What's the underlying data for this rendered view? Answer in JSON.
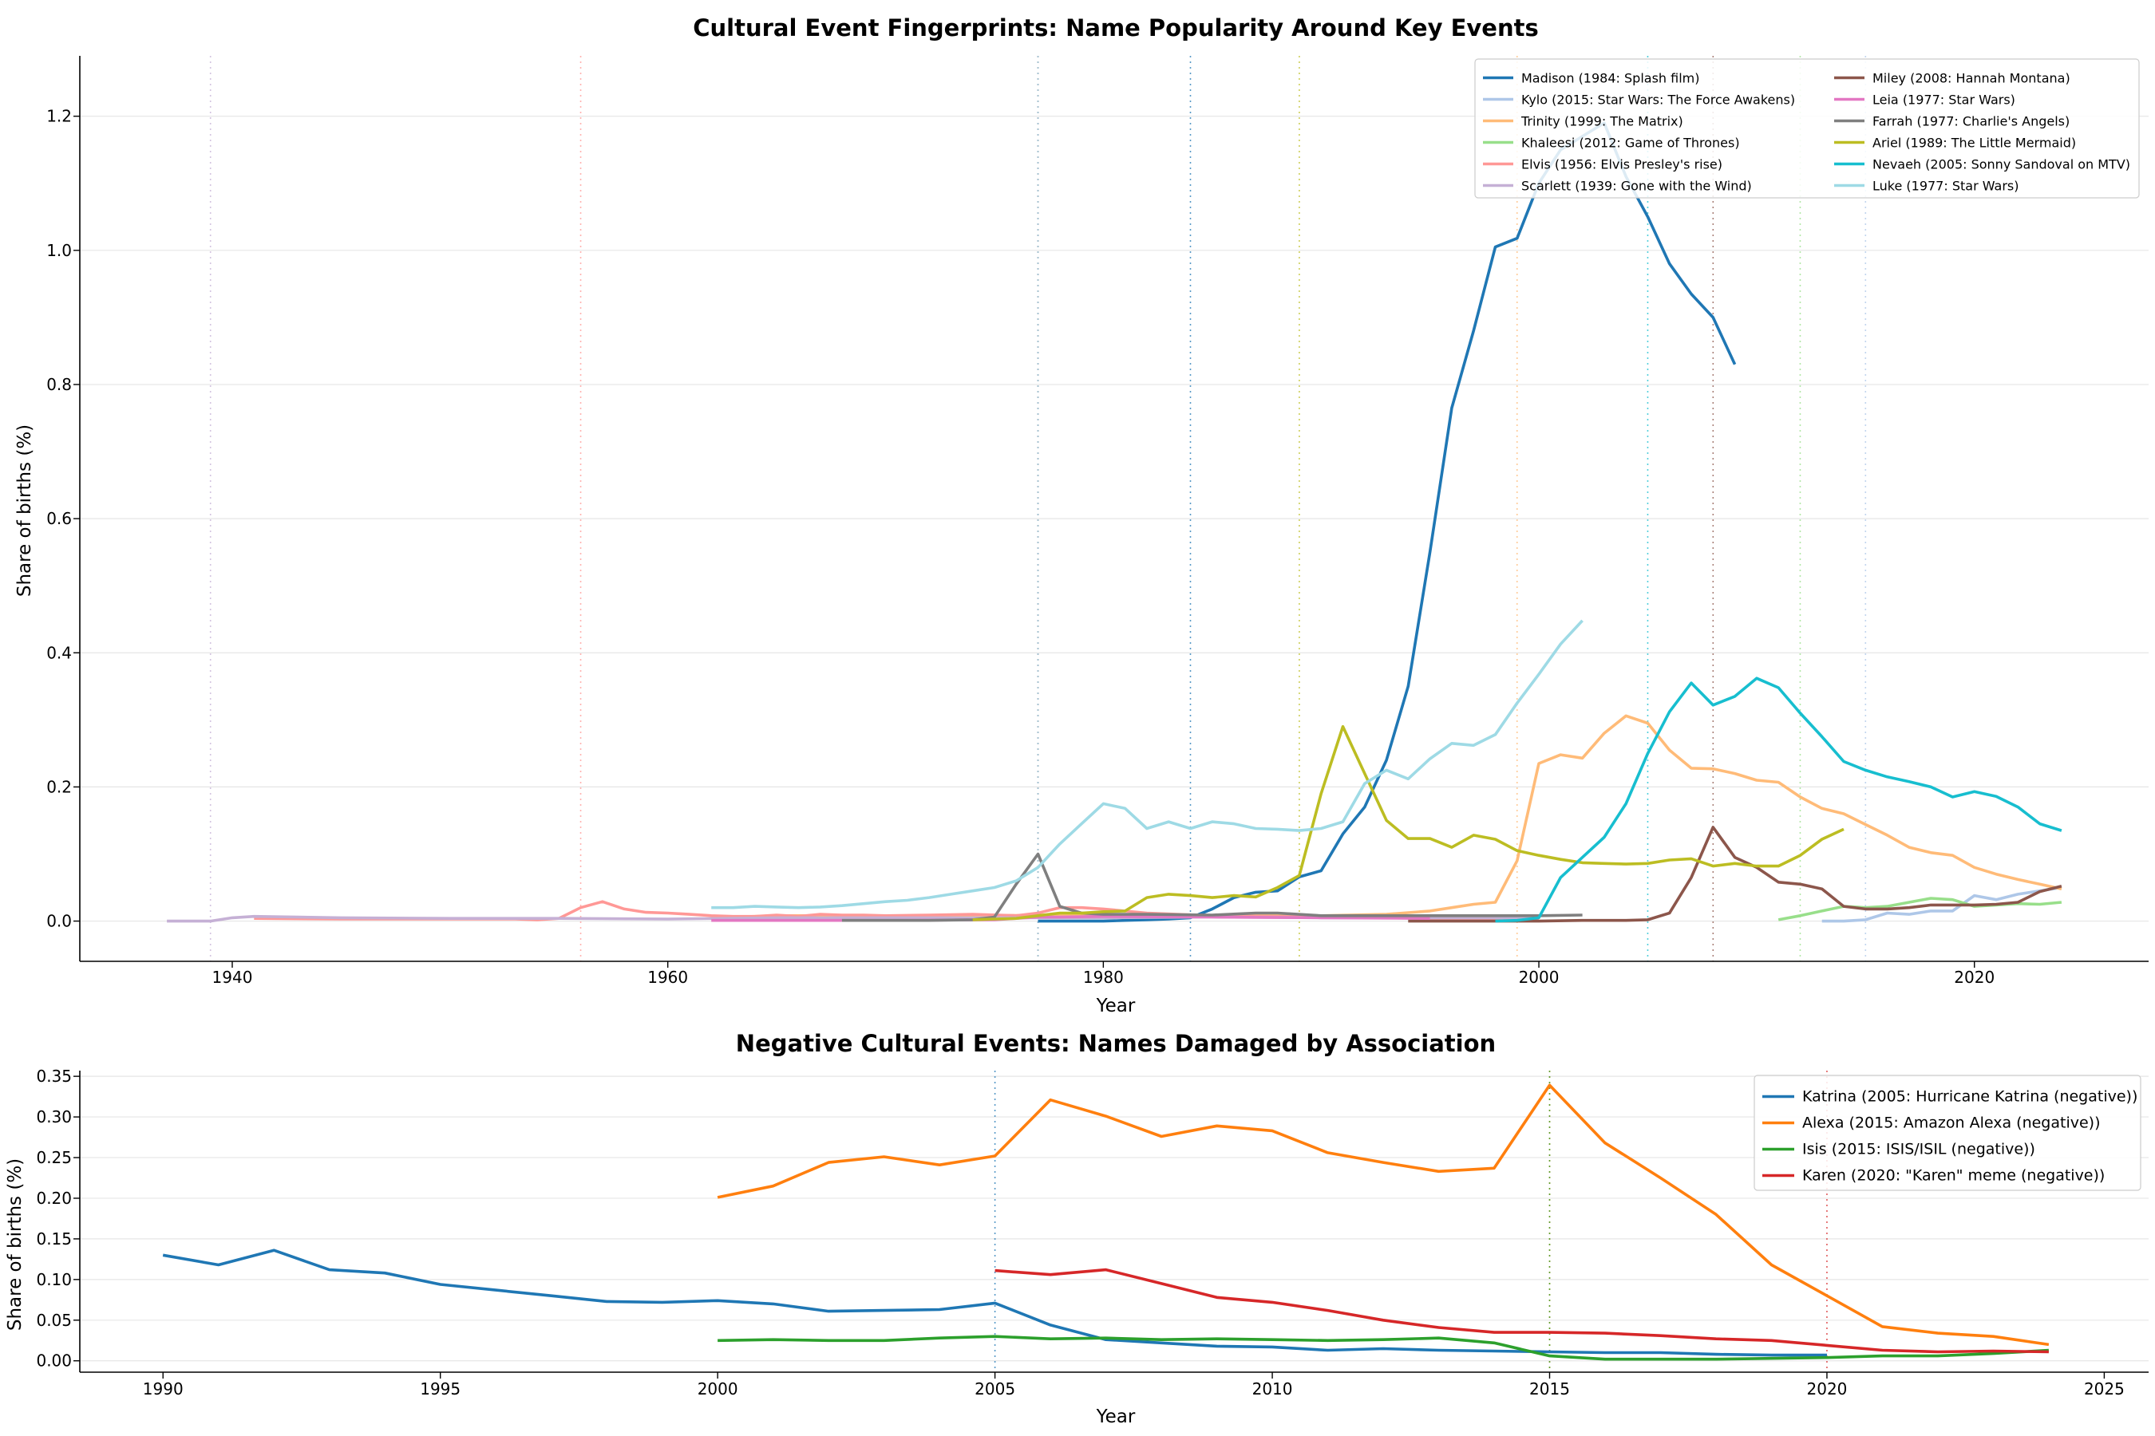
{
  "chart_data": [
    {
      "type": "line",
      "title": "Cultural Event Fingerprints: Name Popularity Around Key Events",
      "xlabel": "Year",
      "ylabel": "Share of births (%)",
      "xlim": [
        1933,
        2028
      ],
      "ylim": [
        -0.06,
        1.29
      ],
      "xticks": [
        1940,
        1960,
        1980,
        2000,
        2020
      ],
      "yticks": [
        0.0,
        0.2,
        0.4,
        0.6,
        0.8,
        1.0,
        1.2
      ],
      "grid": "horizontal",
      "legend": "top-right",
      "legend_columns": 2,
      "event_lines_dotted": true,
      "series": [
        {
          "name": "Madison (1984: Splash film)",
          "color": "#1f77b4",
          "event_year": 1984,
          "x": [
            1977,
            1978,
            1979,
            1980,
            1981,
            1982,
            1983,
            1984,
            1985,
            1986,
            1987,
            1988,
            1989,
            1990,
            1991,
            1992,
            1993,
            1994,
            1995,
            1996,
            1997,
            1998,
            1999,
            2000,
            2001,
            2002,
            2003,
            2004,
            2005,
            2006,
            2007,
            2008,
            2009
          ],
          "y": [
            0.0,
            0.0,
            0.0,
            0.0,
            0.001,
            0.002,
            0.003,
            0.005,
            0.018,
            0.035,
            0.043,
            0.045,
            0.066,
            0.075,
            0.13,
            0.17,
            0.24,
            0.35,
            0.55,
            0.765,
            0.88,
            1.005,
            1.018,
            1.1,
            1.15,
            1.17,
            1.19,
            1.11,
            1.05,
            0.98,
            0.935,
            0.9,
            0.83
          ]
        },
        {
          "name": "Kylo (2015: Star Wars: The Force Awakens)",
          "color": "#aec7e8",
          "event_year": 2015,
          "x": [
            2013,
            2014,
            2015,
            2016,
            2017,
            2018,
            2019,
            2020,
            2021,
            2022,
            2023,
            2024
          ],
          "y": [
            0.0,
            0.0,
            0.002,
            0.012,
            0.01,
            0.015,
            0.015,
            0.038,
            0.032,
            0.04,
            0.045,
            0.05
          ]
        },
        {
          "name": "Trinity (1999: The Matrix)",
          "color": "#ffbb78",
          "event_year": 1999,
          "x": [
            1962,
            1965,
            1970,
            1975,
            1980,
            1985,
            1990,
            1993,
            1995,
            1996,
            1997,
            1998,
            1999,
            2000,
            2001,
            2002,
            2003,
            2004,
            2005,
            2006,
            2007,
            2008,
            2009,
            2010,
            2011,
            2012,
            2013,
            2014,
            2015,
            2016,
            2017,
            2018,
            2019,
            2020,
            2021,
            2022,
            2023,
            2024
          ],
          "y": [
            0.005,
            0.008,
            0.008,
            0.008,
            0.01,
            0.008,
            0.008,
            0.01,
            0.015,
            0.02,
            0.025,
            0.028,
            0.09,
            0.235,
            0.248,
            0.243,
            0.28,
            0.306,
            0.295,
            0.255,
            0.228,
            0.227,
            0.22,
            0.21,
            0.207,
            0.185,
            0.168,
            0.16,
            0.144,
            0.128,
            0.11,
            0.102,
            0.098,
            0.08,
            0.07,
            0.062,
            0.055,
            0.048
          ]
        },
        {
          "name": "Khaleesi (2012: Game of Thrones)",
          "color": "#98df8a",
          "event_year": 2012,
          "x": [
            2011,
            2012,
            2013,
            2014,
            2015,
            2016,
            2017,
            2018,
            2019,
            2020,
            2021,
            2022,
            2023,
            2024
          ],
          "y": [
            0.002,
            0.008,
            0.015,
            0.022,
            0.02,
            0.022,
            0.028,
            0.034,
            0.032,
            0.022,
            0.024,
            0.026,
            0.025,
            0.028
          ]
        },
        {
          "name": "Elvis (1956: Elvis Presley's rise)",
          "color": "#ff9896",
          "event_year": 1956,
          "x": [
            1941,
            1945,
            1950,
            1953,
            1954,
            1955,
            1956,
            1957,
            1958,
            1959,
            1960,
            1961,
            1962,
            1963,
            1964,
            1965,
            1966,
            1967,
            1968,
            1969,
            1970,
            1972,
            1974,
            1976,
            1977,
            1978,
            1979,
            1980,
            1982,
            1985,
            1990,
            1995,
            2000
          ],
          "y": [
            0.004,
            0.003,
            0.003,
            0.003,
            0.002,
            0.004,
            0.02,
            0.029,
            0.018,
            0.013,
            0.012,
            0.01,
            0.008,
            0.007,
            0.007,
            0.009,
            0.007,
            0.01,
            0.009,
            0.009,
            0.008,
            0.009,
            0.01,
            0.008,
            0.012,
            0.02,
            0.02,
            0.018,
            0.012,
            0.008,
            0.006,
            0.004,
            0.004
          ]
        },
        {
          "name": "Scarlett (1939: Gone with the Wind)",
          "color": "#c5b0d5",
          "event_year": 1939,
          "x": [
            1937,
            1938,
            1939,
            1940,
            1941,
            1945,
            1950,
            1955,
            1960,
            1965,
            1970,
            1975,
            1980,
            1985,
            1990,
            1995,
            2000
          ],
          "y": [
            0.0,
            0.0,
            0.0,
            0.005,
            0.007,
            0.005,
            0.004,
            0.004,
            0.003,
            0.005,
            0.005,
            0.005,
            0.005,
            0.006,
            0.005,
            0.005,
            0.005
          ]
        },
        {
          "name": "Miley (2008: Hannah Montana)",
          "color": "#8c564b",
          "event_year": 2008,
          "x": [
            1994,
            1996,
            1998,
            2000,
            2002,
            2004,
            2005,
            2006,
            2007,
            2008,
            2009,
            2010,
            2011,
            2012,
            2013,
            2014,
            2015,
            2016,
            2017,
            2018,
            2019,
            2020,
            2021,
            2022,
            2023,
            2024
          ],
          "y": [
            0.0,
            0.0,
            0.0,
            0.0,
            0.001,
            0.001,
            0.002,
            0.012,
            0.065,
            0.14,
            0.095,
            0.08,
            0.058,
            0.055,
            0.048,
            0.022,
            0.018,
            0.018,
            0.02,
            0.024,
            0.024,
            0.024,
            0.025,
            0.028,
            0.044,
            0.052
          ]
        },
        {
          "name": "Leia (1977: Star Wars)",
          "color": "#e377c2",
          "event_year": 1977,
          "x": [
            1962,
            1970,
            1975,
            1977,
            1978,
            1980,
            1985,
            1990,
            1995
          ],
          "y": [
            0.001,
            0.001,
            0.002,
            0.006,
            0.006,
            0.007,
            0.006,
            0.005,
            0.004
          ]
        },
        {
          "name": "Farrah (1977: Charlie's Angels)",
          "color": "#7f7f7f",
          "event_year": 1977,
          "x": [
            1968,
            1970,
            1972,
            1974,
            1975,
            1976,
            1977,
            1978,
            1979,
            1980,
            1982,
            1985,
            1987,
            1988,
            1990,
            1995,
            2000,
            2002
          ],
          "y": [
            0.001,
            0.001,
            0.001,
            0.002,
            0.006,
            0.055,
            0.1,
            0.022,
            0.012,
            0.01,
            0.01,
            0.009,
            0.012,
            0.012,
            0.008,
            0.008,
            0.008,
            0.009
          ]
        },
        {
          "name": "Ariel (1989: The Little Mermaid)",
          "color": "#bcbd22",
          "event_year": 1989,
          "x": [
            1974,
            1975,
            1976,
            1977,
            1978,
            1979,
            1980,
            1981,
            1982,
            1983,
            1984,
            1985,
            1986,
            1987,
            1988,
            1989,
            1990,
            1991,
            1992,
            1993,
            1994,
            1995,
            1996,
            1997,
            1998,
            1999,
            2000,
            2001,
            2002,
            2003,
            2004,
            2005,
            2006,
            2007,
            2008,
            2009,
            2010,
            2011,
            2012,
            2013,
            2014
          ],
          "y": [
            0.002,
            0.003,
            0.004,
            0.008,
            0.012,
            0.012,
            0.014,
            0.015,
            0.035,
            0.04,
            0.038,
            0.035,
            0.038,
            0.036,
            0.05,
            0.068,
            0.19,
            0.29,
            0.22,
            0.15,
            0.123,
            0.123,
            0.11,
            0.128,
            0.122,
            0.105,
            0.098,
            0.092,
            0.087,
            0.086,
            0.085,
            0.086,
            0.091,
            0.093,
            0.082,
            0.086,
            0.082,
            0.082,
            0.098,
            0.122,
            0.137
          ]
        },
        {
          "name": "Nevaeh (2005: Sonny Sandoval on MTV)",
          "color": "#17becf",
          "event_year": 2005,
          "x": [
            1998,
            1999,
            2000,
            2001,
            2002,
            2003,
            2004,
            2005,
            2006,
            2007,
            2008,
            2009,
            2010,
            2011,
            2012,
            2013,
            2014,
            2015,
            2016,
            2017,
            2018,
            2019,
            2020,
            2021,
            2022,
            2023,
            2024
          ],
          "y": [
            0.0,
            0.001,
            0.005,
            0.065,
            0.095,
            0.125,
            0.175,
            0.25,
            0.312,
            0.355,
            0.322,
            0.335,
            0.362,
            0.348,
            0.31,
            0.275,
            0.238,
            0.225,
            0.215,
            0.208,
            0.2,
            0.185,
            0.193,
            0.186,
            0.17,
            0.145,
            0.135
          ]
        },
        {
          "name": "Luke (1977: Star Wars)",
          "color": "#9edae5",
          "event_year": 1977,
          "x": [
            1962,
            1963,
            1964,
            1965,
            1966,
            1967,
            1968,
            1969,
            1970,
            1971,
            1972,
            1973,
            1974,
            1975,
            1976,
            1977,
            1978,
            1979,
            1980,
            1981,
            1982,
            1983,
            1984,
            1985,
            1986,
            1987,
            1988,
            1989,
            1990,
            1991,
            1992,
            1993,
            1994,
            1995,
            1996,
            1997,
            1998,
            1999,
            2000,
            2001,
            2002
          ],
          "y": [
            0.02,
            0.02,
            0.022,
            0.021,
            0.02,
            0.021,
            0.023,
            0.026,
            0.029,
            0.031,
            0.035,
            0.04,
            0.045,
            0.05,
            0.06,
            0.08,
            0.115,
            0.145,
            0.175,
            0.168,
            0.138,
            0.148,
            0.138,
            0.148,
            0.145,
            0.138,
            0.137,
            0.135,
            0.138,
            0.148,
            0.205,
            0.225,
            0.212,
            0.242,
            0.265,
            0.262,
            0.278,
            0.325,
            0.368,
            0.413,
            0.448
          ]
        }
      ]
    },
    {
      "type": "line",
      "title": "Negative Cultural Events: Names Damaged by Association",
      "xlabel": "Year",
      "ylabel": "Share of births (%)",
      "xlim": [
        1988.5,
        2025.8
      ],
      "ylim": [
        -0.014,
        0.357
      ],
      "xticks": [
        1990,
        1995,
        2000,
        2005,
        2010,
        2015,
        2020,
        2025
      ],
      "yticks": [
        0.0,
        0.05,
        0.1,
        0.15,
        0.2,
        0.25,
        0.3,
        0.35
      ],
      "grid": "horizontal",
      "legend": "top-right",
      "event_lines_dotted": true,
      "series": [
        {
          "name": "Katrina (2005: Hurricane Katrina (negative))",
          "color": "#1f77b4",
          "event_year": 2005,
          "x": [
            1990,
            1991,
            1992,
            1993,
            1994,
            1995,
            1996,
            1997,
            1998,
            1999,
            2000,
            2001,
            2002,
            2003,
            2004,
            2005,
            2006,
            2007,
            2008,
            2009,
            2010,
            2011,
            2012,
            2013,
            2014,
            2015,
            2016,
            2017,
            2018,
            2019,
            2020
          ],
          "y": [
            0.13,
            0.118,
            0.136,
            0.112,
            0.108,
            0.094,
            0.087,
            0.08,
            0.073,
            0.072,
            0.074,
            0.07,
            0.061,
            0.062,
            0.063,
            0.071,
            0.044,
            0.026,
            0.022,
            0.018,
            0.017,
            0.013,
            0.015,
            0.013,
            0.012,
            0.011,
            0.01,
            0.01,
            0.008,
            0.007,
            0.007
          ]
        },
        {
          "name": "Alexa (2015: Amazon Alexa (negative))",
          "color": "#ff7f0e",
          "event_year": 2015,
          "x": [
            2000,
            2001,
            2002,
            2003,
            2004,
            2005,
            2006,
            2007,
            2008,
            2009,
            2010,
            2011,
            2012,
            2013,
            2014,
            2015,
            2016,
            2017,
            2018,
            2019,
            2020,
            2021,
            2022,
            2023,
            2024
          ],
          "y": [
            0.201,
            0.215,
            0.244,
            0.251,
            0.241,
            0.252,
            0.321,
            0.301,
            0.276,
            0.289,
            0.283,
            0.256,
            0.244,
            0.233,
            0.237,
            0.339,
            0.268,
            0.225,
            0.18,
            0.118,
            0.08,
            0.042,
            0.034,
            0.03,
            0.02
          ]
        },
        {
          "name": "Isis (2015: ISIS/ISIL (negative))",
          "color": "#2ca02c",
          "event_year": 2015,
          "x": [
            2000,
            2001,
            2002,
            2003,
            2004,
            2005,
            2006,
            2007,
            2008,
            2009,
            2010,
            2011,
            2012,
            2013,
            2014,
            2015,
            2016,
            2017,
            2018,
            2019,
            2020,
            2021,
            2022,
            2023,
            2024
          ],
          "y": [
            0.025,
            0.026,
            0.025,
            0.025,
            0.028,
            0.03,
            0.027,
            0.028,
            0.026,
            0.027,
            0.026,
            0.025,
            0.026,
            0.028,
            0.022,
            0.006,
            0.002,
            0.002,
            0.002,
            0.003,
            0.004,
            0.006,
            0.006,
            0.009,
            0.013
          ]
        },
        {
          "name": "Karen (2020: \"Karen\" meme (negative))",
          "color": "#d62728",
          "event_year": 2020,
          "x": [
            2005,
            2006,
            2007,
            2008,
            2009,
            2010,
            2011,
            2012,
            2013,
            2014,
            2015,
            2016,
            2017,
            2018,
            2019,
            2020,
            2021,
            2022,
            2023,
            2024
          ],
          "y": [
            0.111,
            0.106,
            0.112,
            0.095,
            0.078,
            0.072,
            0.062,
            0.05,
            0.041,
            0.035,
            0.035,
            0.034,
            0.031,
            0.027,
            0.025,
            0.019,
            0.013,
            0.011,
            0.012,
            0.011
          ]
        }
      ]
    }
  ]
}
